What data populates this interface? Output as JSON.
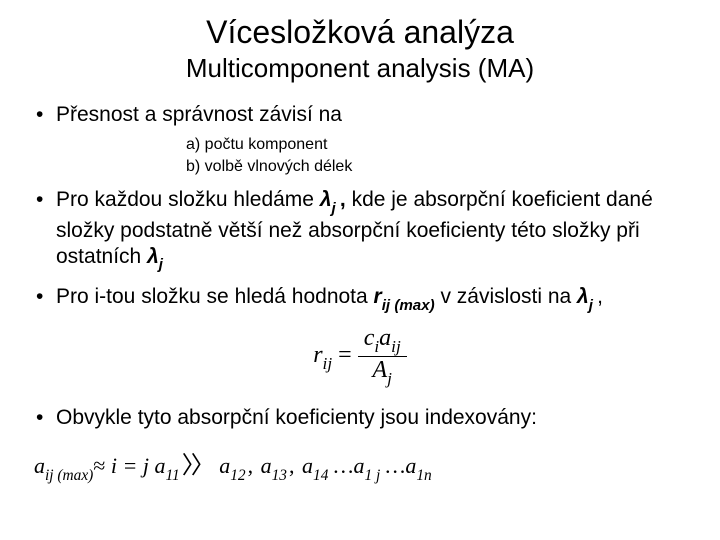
{
  "title": "Vícesložková analýza",
  "subtitle": "Multicomponent analysis (MA)",
  "bullets": {
    "b1": "Přesnost a správnost závisí na",
    "sub_a": "a)   počtu komponent",
    "sub_b": "b)   volbě vlnových délek",
    "b2_p1": "Pro každou složku hledáme ",
    "b2_lambda": "λ",
    "b2_j": "j ",
    "b2_comma": ", ",
    "b2_p2": "kde je absorpční koeficient dané složky podstatně větší než absorpční koeficienty této složky při ostatních ",
    "b2_lambda2": "λ",
    "b2_j2": "j",
    "b3_p1": "Pro i-tou složku se hledá hodnota ",
    "b3_r": "r",
    "b3_ij": "ij (max)",
    "b3_p2": " v závislosti na ",
    "b3_lambda": "λ",
    "b3_j": "j ",
    "b3_comma": ",",
    "b4": "Obvykle tyto absorpční koeficienty jsou indexovány:"
  },
  "formula1": {
    "lhs_r": "r",
    "lhs_ij": "ij",
    "eq": " = ",
    "num_c": "c",
    "num_i": "i",
    "num_a": "a",
    "num_ij": "ij",
    "den_A": "A",
    "den_j": "j"
  },
  "formula2": {
    "a": "a",
    "ijmax": "ij (max)",
    "approx": "≈",
    "i": "i",
    "eqj": " = j",
    "gap": "   ",
    "a11": "11",
    "rangle": "〉〉",
    "a12": "12",
    "a13": "13",
    "a14": "14",
    "dots": " …",
    "a1j": "1 j",
    "a1n": "1n"
  },
  "colors": {
    "background": "#ffffff",
    "text": "#000000"
  }
}
